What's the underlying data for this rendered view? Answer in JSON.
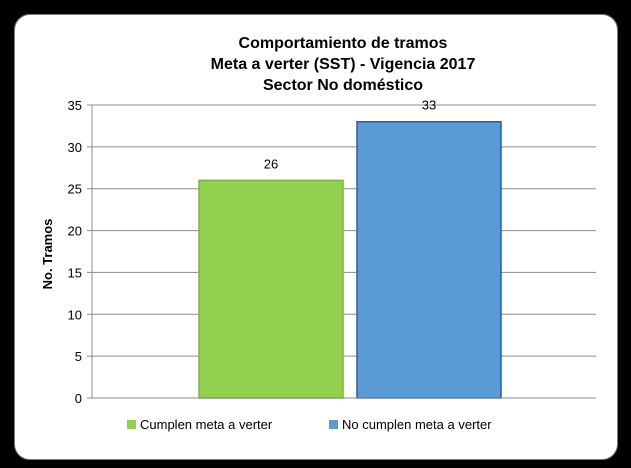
{
  "chart_data": {
    "type": "bar",
    "title": [
      "Comportamiento  de tramos",
      "Meta a verter  (SST) - Vigencia 2017",
      "Sector No doméstico"
    ],
    "ylabel": "No. Tramos",
    "xlabel": "",
    "ylim": [
      0,
      35
    ],
    "yticks": [
      0,
      5,
      10,
      15,
      20,
      25,
      30,
      35
    ],
    "grid": true,
    "legend_position": "bottom",
    "series": [
      {
        "name": "Cumplen meta a verter",
        "value": 26,
        "color": "#92d050",
        "border": "#7fb53f"
      },
      {
        "name": "No cumplen meta a verter",
        "value": 33,
        "color": "#5b9bd5",
        "border": "#2e5d9e"
      }
    ]
  }
}
